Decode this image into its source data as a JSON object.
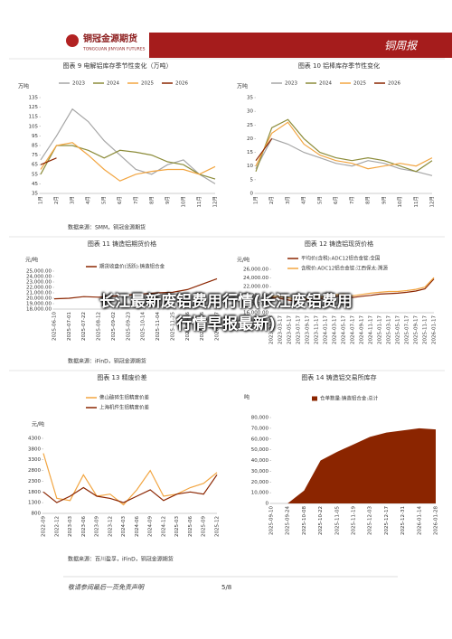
{
  "header": {
    "brand": "铜冠金源期货",
    "brand_en": "TONGGUAN JINYUAN FUTURES",
    "report": "铜周报"
  },
  "overlay": {
    "title_lines": [
      "长江最新废铝费用行情(长江废铝费用",
      "行情早报最新)"
    ]
  },
  "sources": [
    "数据来源：SMM，铜冠金源期货",
    "数据来源：iFinD，铜冠金源期货",
    "数据来源：百川盈孚，iFinD，铜冠金源期货"
  ],
  "footer": {
    "disclaimer": "敬请参阅最后一页免责声明",
    "page": "5/8"
  },
  "chart_data": [
    {
      "type": "line",
      "title": "图表 9 电解铝库存季节性变化（万吨）",
      "y_label": "万吨",
      "categories": [
        "1月",
        "2月",
        "3月",
        "4月",
        "5月",
        "6月",
        "7月",
        "8月",
        "9月",
        "10月",
        "11月",
        "12月"
      ],
      "ylim": [
        35,
        135
      ],
      "yticks": [
        35,
        45,
        55,
        65,
        75,
        85,
        95,
        105,
        115,
        125,
        135
      ],
      "series": [
        {
          "name": "2023",
          "color": "#a6a6a6",
          "values": [
            70,
            95,
            123,
            110,
            90,
            75,
            60,
            55,
            65,
            70,
            55,
            45
          ]
        },
        {
          "name": "2024",
          "color": "#8c8c3a",
          "values": [
            55,
            85,
            85,
            80,
            72,
            80,
            78,
            75,
            68,
            65,
            55,
            50
          ]
        },
        {
          "name": "2025",
          "color": "#f2a541",
          "values": [
            60,
            85,
            88,
            75,
            60,
            48,
            55,
            58,
            60,
            60,
            55,
            63
          ]
        },
        {
          "name": "2026",
          "color": "#8b2500",
          "values": [
            65,
            72,
            null,
            null,
            null,
            null,
            null,
            null,
            null,
            null,
            null,
            null
          ]
        }
      ]
    },
    {
      "type": "line",
      "title": "图表 10 铝棒库存季节性变化",
      "y_label": "万吨",
      "categories": [
        "1月",
        "2月",
        "3月",
        "4月",
        "5月",
        "6月",
        "7月",
        "8月",
        "9月",
        "10月",
        "11月",
        "12月"
      ],
      "ylim": [
        0,
        35
      ],
      "yticks": [
        0,
        5,
        10,
        15,
        20,
        25,
        30,
        35
      ],
      "series": [
        {
          "name": "2023",
          "color": "#a6a6a6",
          "values": [
            9,
            20,
            18,
            15,
            13,
            11,
            10,
            12,
            11,
            9,
            8,
            6.5
          ]
        },
        {
          "name": "2024",
          "color": "#8c8c3a",
          "values": [
            8,
            24,
            27,
            20,
            15,
            13,
            12,
            13,
            12,
            10,
            8,
            12
          ]
        },
        {
          "name": "2025",
          "color": "#f2a541",
          "values": [
            10,
            22,
            26,
            18,
            14,
            12,
            11,
            9,
            10,
            11,
            10,
            13
          ]
        },
        {
          "name": "2026",
          "color": "#8b2500",
          "values": [
            12,
            20,
            null,
            null,
            null,
            null,
            null,
            null,
            null,
            null,
            null,
            null
          ]
        }
      ]
    },
    {
      "type": "line",
      "title": "图表 11 铸造铝期货价格",
      "y_label": "元/吨",
      "categories": [
        "2025-06-10",
        "2025-07-01",
        "2025-07-22",
        "2025-08-12",
        "2025-09-02",
        "2025-09-23",
        "2025-10-14",
        "2025-11-04",
        "2025-11-25",
        "2025-12-16",
        "2026-01-06",
        "2026-01-27"
      ],
      "ylim": [
        18000,
        25000
      ],
      "yticks": [
        {
          "value": 18000,
          "label": "18,000.00"
        },
        {
          "value": 19000,
          "label": "19,000.00"
        },
        {
          "value": 20000,
          "label": "20,000.00"
        },
        {
          "value": 21000,
          "label": "21,000.00"
        },
        {
          "value": 22000,
          "label": "22,000.00"
        },
        {
          "value": 23000,
          "label": "23,000.00"
        },
        {
          "value": 24000,
          "label": "24,000.00"
        },
        {
          "value": 25000,
          "label": "25,000.00"
        }
      ],
      "series": [
        {
          "name": "期货收盘价(活跃):铸造铝合金",
          "color": "#8b2500",
          "values": [
            19900,
            20000,
            20300,
            20200,
            20400,
            20600,
            20800,
            21000,
            21100,
            21600,
            22600,
            23600
          ]
        }
      ]
    },
    {
      "type": "line",
      "title": "图表 12 铸造铝现货价格",
      "y_label": "元/吨",
      "categories": [
        "2023-01-03",
        "2023-03-17",
        "2023-05-17",
        "2023-07-17",
        "2023-09-17",
        "2023-11-17",
        "2024-01-17",
        "2024-03-17",
        "2024-05-17",
        "2024-07-17",
        "2024-09-17",
        "2024-11-17",
        "2025-01-17",
        "2025-03-17",
        "2025-05-17",
        "2025-07-17",
        "2025-09-17",
        "2025-11-17",
        "2026-01-17"
      ],
      "ylim": [
        16000,
        26000
      ],
      "yticks": [
        {
          "value": 16000,
          "label": "16,000.00"
        },
        {
          "value": 18000,
          "label": "18,000.00"
        },
        {
          "value": 20000,
          "label": "20,000.00"
        },
        {
          "value": 22000,
          "label": "22,000.00"
        },
        {
          "value": 24000,
          "label": "24,000.00"
        },
        {
          "value": 26000,
          "label": "26,000.00"
        }
      ],
      "series": [
        {
          "name": "平均价(含税):ADC12铝合金锭:全国",
          "color": "#8b2500",
          "values": [
            19500,
            19300,
            18900,
            18600,
            19000,
            19400,
            19200,
            19700,
            19900,
            19500,
            19800,
            20000,
            20300,
            20400,
            20500,
            20700,
            21000,
            21500,
            23800
          ]
        },
        {
          "name": "含税价:ADC12铝合金锭:江西保太:溯源",
          "color": "#f2a541",
          "values": [
            19800,
            19700,
            19400,
            19000,
            19300,
            19800,
            19600,
            20100,
            20300,
            19900,
            20200,
            20500,
            20700,
            20900,
            20900,
            21100,
            21400,
            21900,
            24100
          ]
        }
      ]
    },
    {
      "type": "line",
      "title": "图表 13 精废价差",
      "y_label": "元/吨",
      "categories": [
        "2022-09",
        "2022-12",
        "2023-03",
        "2023-06",
        "2023-09",
        "2023-12",
        "2024-03",
        "2024-06",
        "2024-09",
        "2024-12",
        "2025-03",
        "2025-06",
        "2025-09",
        "2025-12"
      ],
      "ylim": [
        800,
        4300
      ],
      "yticks": [
        800,
        1300,
        1800,
        2300,
        2800,
        3300,
        3800,
        4300
      ],
      "series": [
        {
          "name": "佛山破碎生铝精废价差",
          "color": "#f2a541",
          "values": [
            3600,
            1500,
            1400,
            2600,
            1600,
            1700,
            1200,
            1900,
            2800,
            1600,
            1700,
            2000,
            2200,
            2700
          ]
        },
        {
          "name": "上海机件生铝精废价差",
          "color": "#8b2500",
          "values": [
            1800,
            1300,
            1600,
            2000,
            1600,
            1500,
            1300,
            1600,
            1900,
            1400,
            1700,
            1800,
            1700,
            2600
          ]
        }
      ]
    },
    {
      "type": "area",
      "title": "图表 14 铸造铝交易所库存",
      "y_label": "吨",
      "categories": [
        "2025-09-10",
        "2025-09-24",
        "2025-10-08",
        "2025-10-22",
        "2025-11-05",
        "2025-11-19",
        "2025-12-03",
        "2025-12-17",
        "2025-12-31",
        "2026-01-14",
        "2026-01-28"
      ],
      "ylim": [
        0,
        80000
      ],
      "yticks": [
        0,
        {
          "value": 10000,
          "label": "10,000"
        },
        {
          "value": 20000,
          "label": "20,000"
        },
        {
          "value": 30000,
          "label": "30,000"
        },
        {
          "value": 40000,
          "label": "40,000"
        },
        {
          "value": 50000,
          "label": "50,000"
        },
        {
          "value": 60000,
          "label": "60,000"
        },
        {
          "value": 70000,
          "label": "70,000"
        },
        {
          "value": 80000,
          "label": "80,000"
        }
      ],
      "series": [
        {
          "name": "仓单数量:铸造铝合金:总计",
          "color": "#8b2500",
          "values": [
            0,
            0,
            12000,
            40000,
            48000,
            55000,
            62000,
            66000,
            68000,
            70000,
            69000
          ]
        }
      ]
    }
  ]
}
